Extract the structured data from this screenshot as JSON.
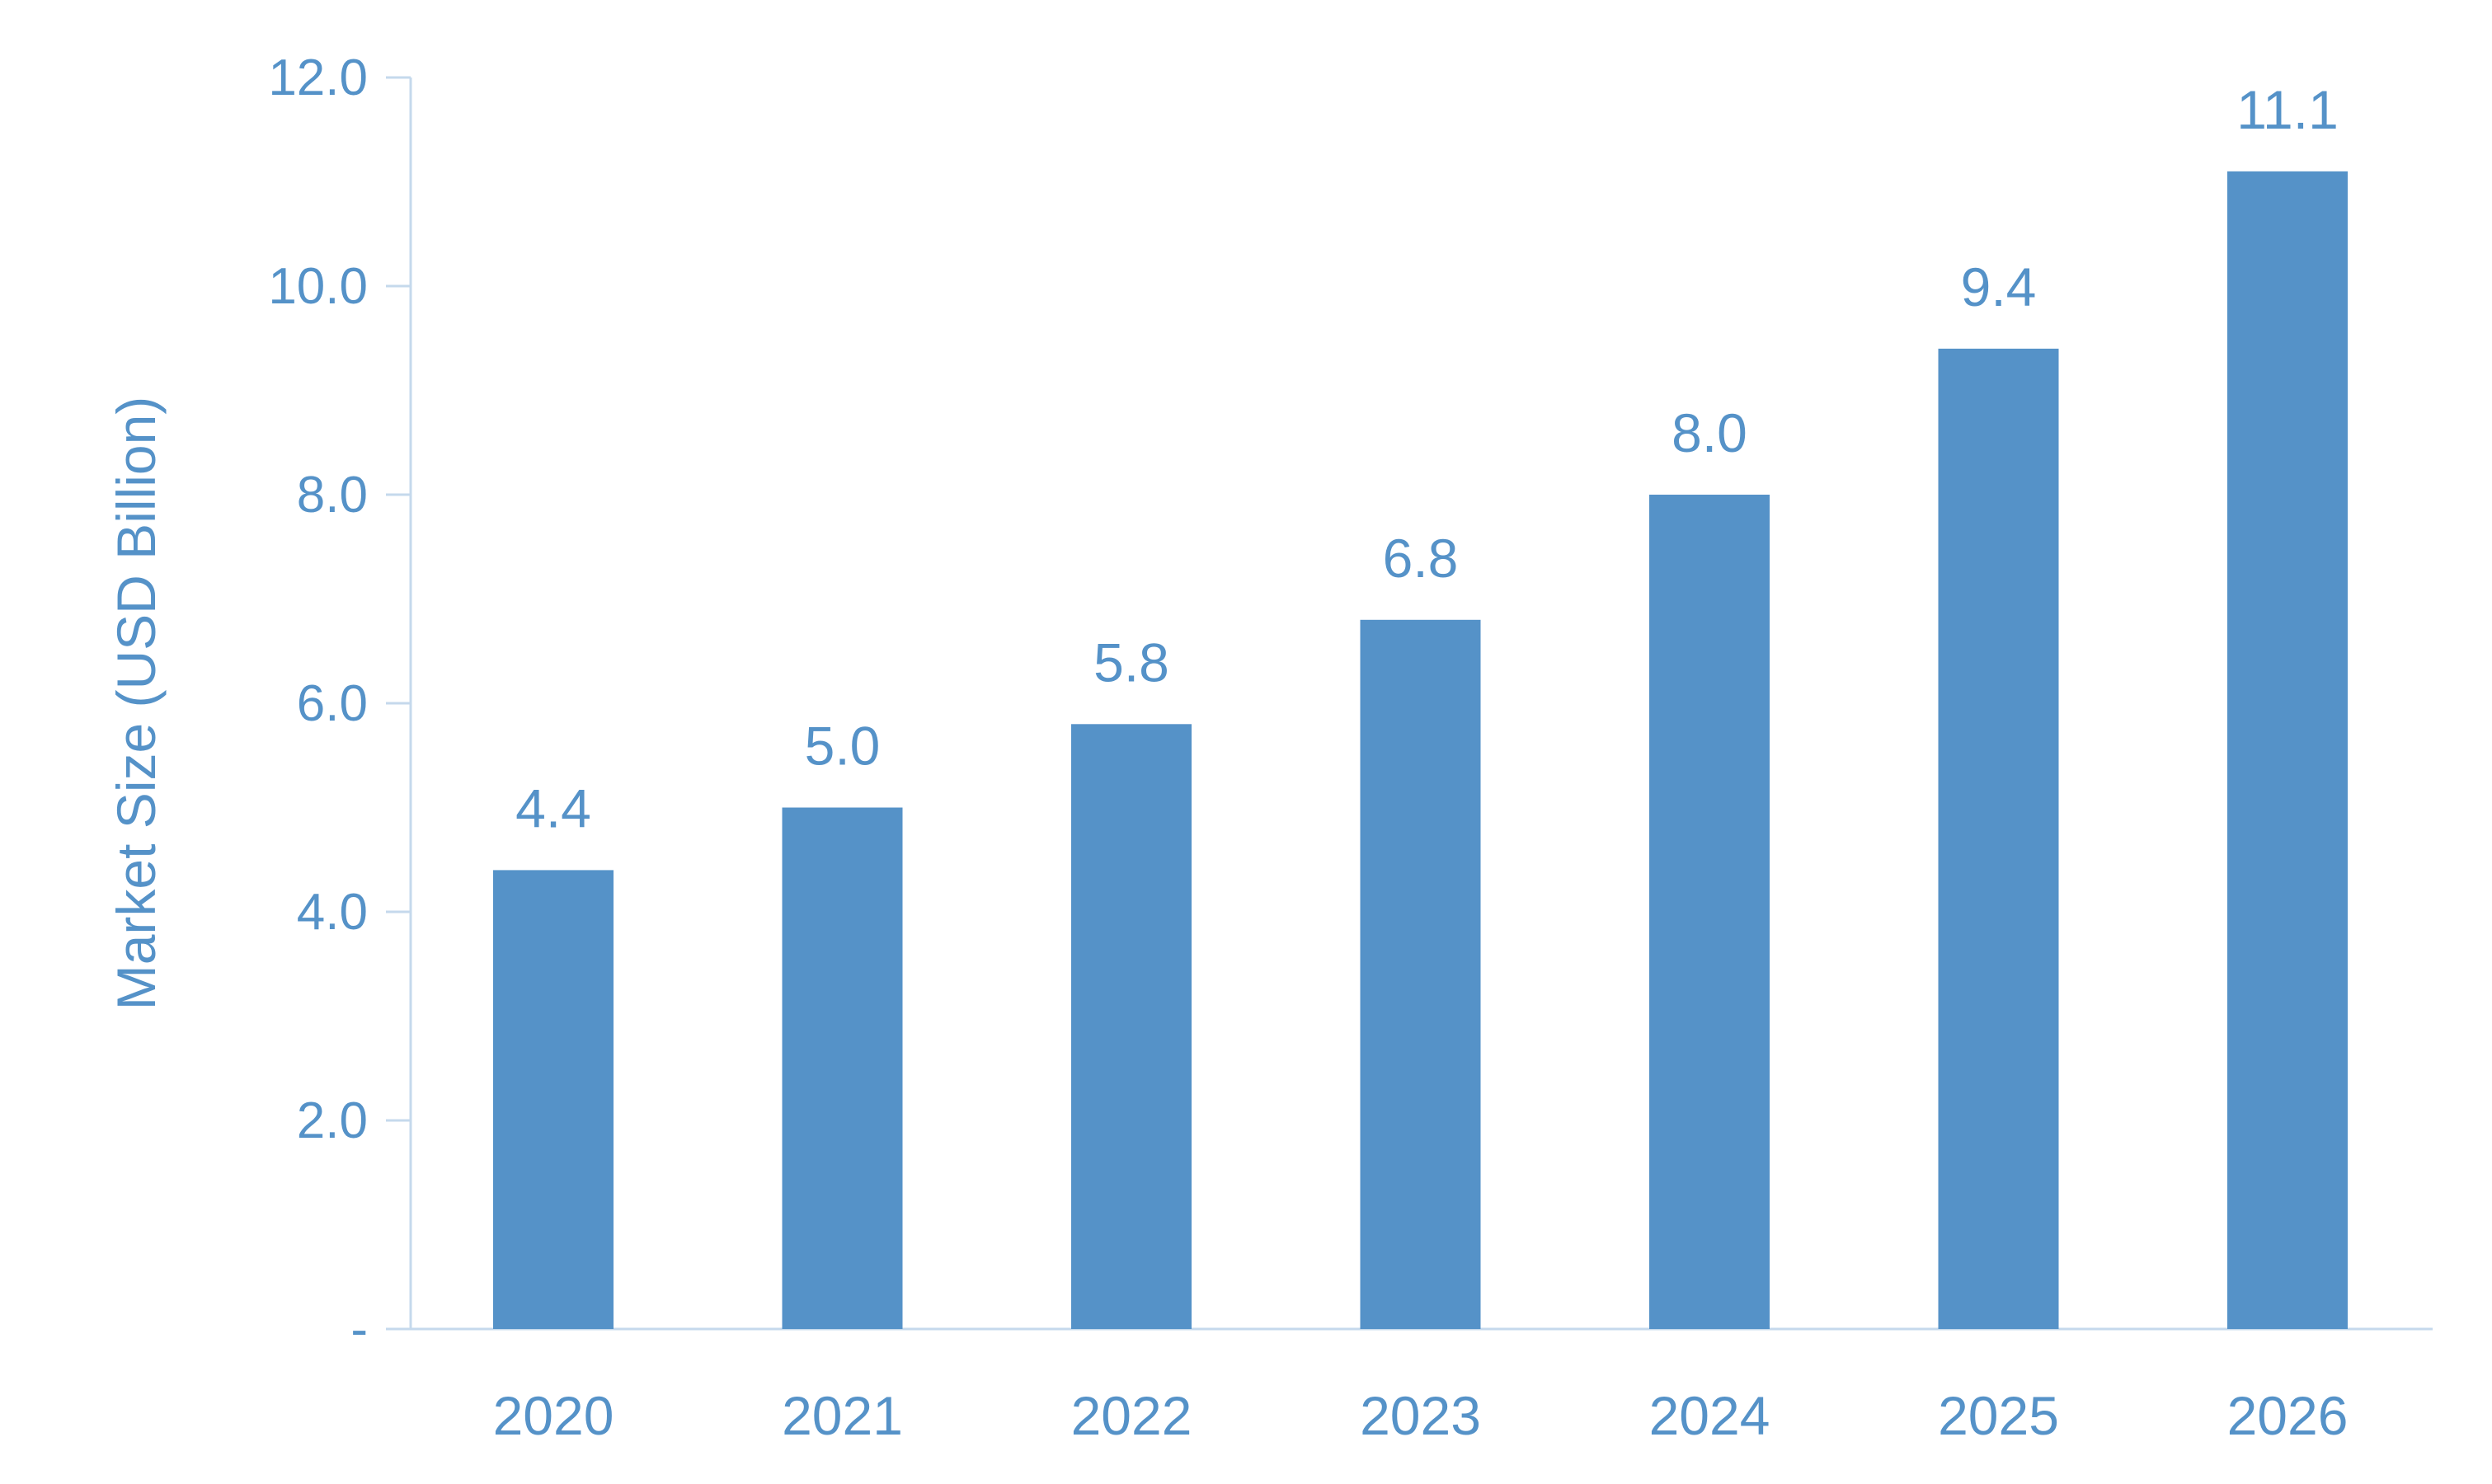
{
  "colors": {
    "bar": "#5592c8",
    "text": "#5592c8",
    "axis": "#c5d9ec"
  },
  "chart_data": {
    "type": "bar",
    "title": "",
    "xlabel": "",
    "ylabel": "Market Size (USD Billion)",
    "categories": [
      "2020",
      "2021",
      "2022",
      "2023",
      "2024",
      "2025",
      "2026"
    ],
    "values": [
      4.4,
      5.0,
      5.8,
      6.8,
      8.0,
      9.4,
      11.1
    ],
    "data_labels": [
      "4.4",
      "5.0",
      "5.8",
      "6.8",
      "8.0",
      "9.4",
      "11.1"
    ],
    "ylim": [
      0,
      12
    ],
    "yticks": [
      0,
      2,
      4,
      6,
      8,
      10,
      12
    ],
    "ytick_labels": [
      "-",
      "2.0",
      "4.0",
      "6.0",
      "8.0",
      "10.0",
      "12.0"
    ],
    "grid": false,
    "legend": "none"
  }
}
